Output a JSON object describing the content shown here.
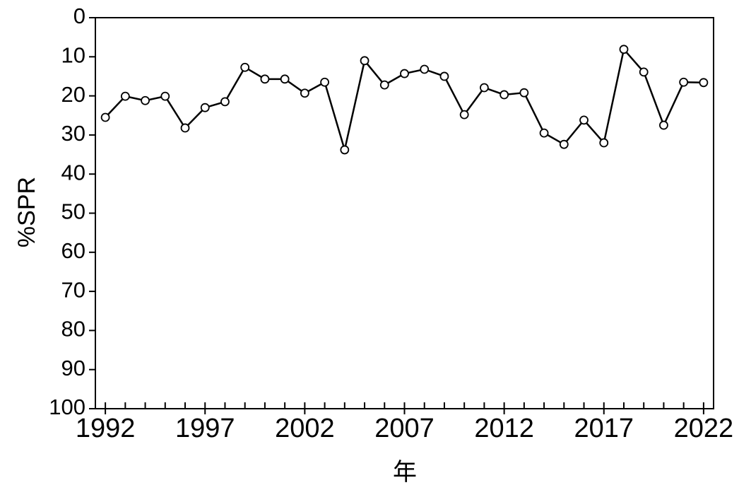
{
  "chart_data": {
    "type": "line",
    "xlabel": "年",
    "ylabel": "%SPR",
    "x": [
      1992,
      1993,
      1994,
      1995,
      1996,
      1997,
      1998,
      1999,
      2000,
      2001,
      2002,
      2003,
      2004,
      2005,
      2006,
      2007,
      2008,
      2009,
      2010,
      2011,
      2012,
      2013,
      2014,
      2015,
      2016,
      2017,
      2018,
      2019,
      2020,
      2021,
      2022
    ],
    "series": [
      {
        "color": "#000000",
        "values": [
          25.5,
          20.1,
          21.2,
          20.1,
          28.2,
          23.0,
          21.5,
          12.7,
          15.7,
          15.7,
          19.3,
          16.5,
          33.8,
          11.0,
          17.2,
          14.3,
          13.2,
          15.0,
          24.8,
          17.9,
          19.7,
          19.2,
          29.5,
          32.4,
          26.2,
          32.0,
          8.1,
          13.9,
          27.5,
          16.5,
          16.6
        ]
      }
    ],
    "xlim": [
      1991.5,
      2022.5
    ],
    "xticks": [
      1992,
      1997,
      2002,
      2007,
      2012,
      2017,
      2022
    ],
    "ylim": [
      0,
      100
    ],
    "yticks": [
      0,
      10,
      20,
      30,
      40,
      50,
      60,
      70,
      80,
      90,
      100
    ],
    "y_reversed": true,
    "grid": false
  }
}
